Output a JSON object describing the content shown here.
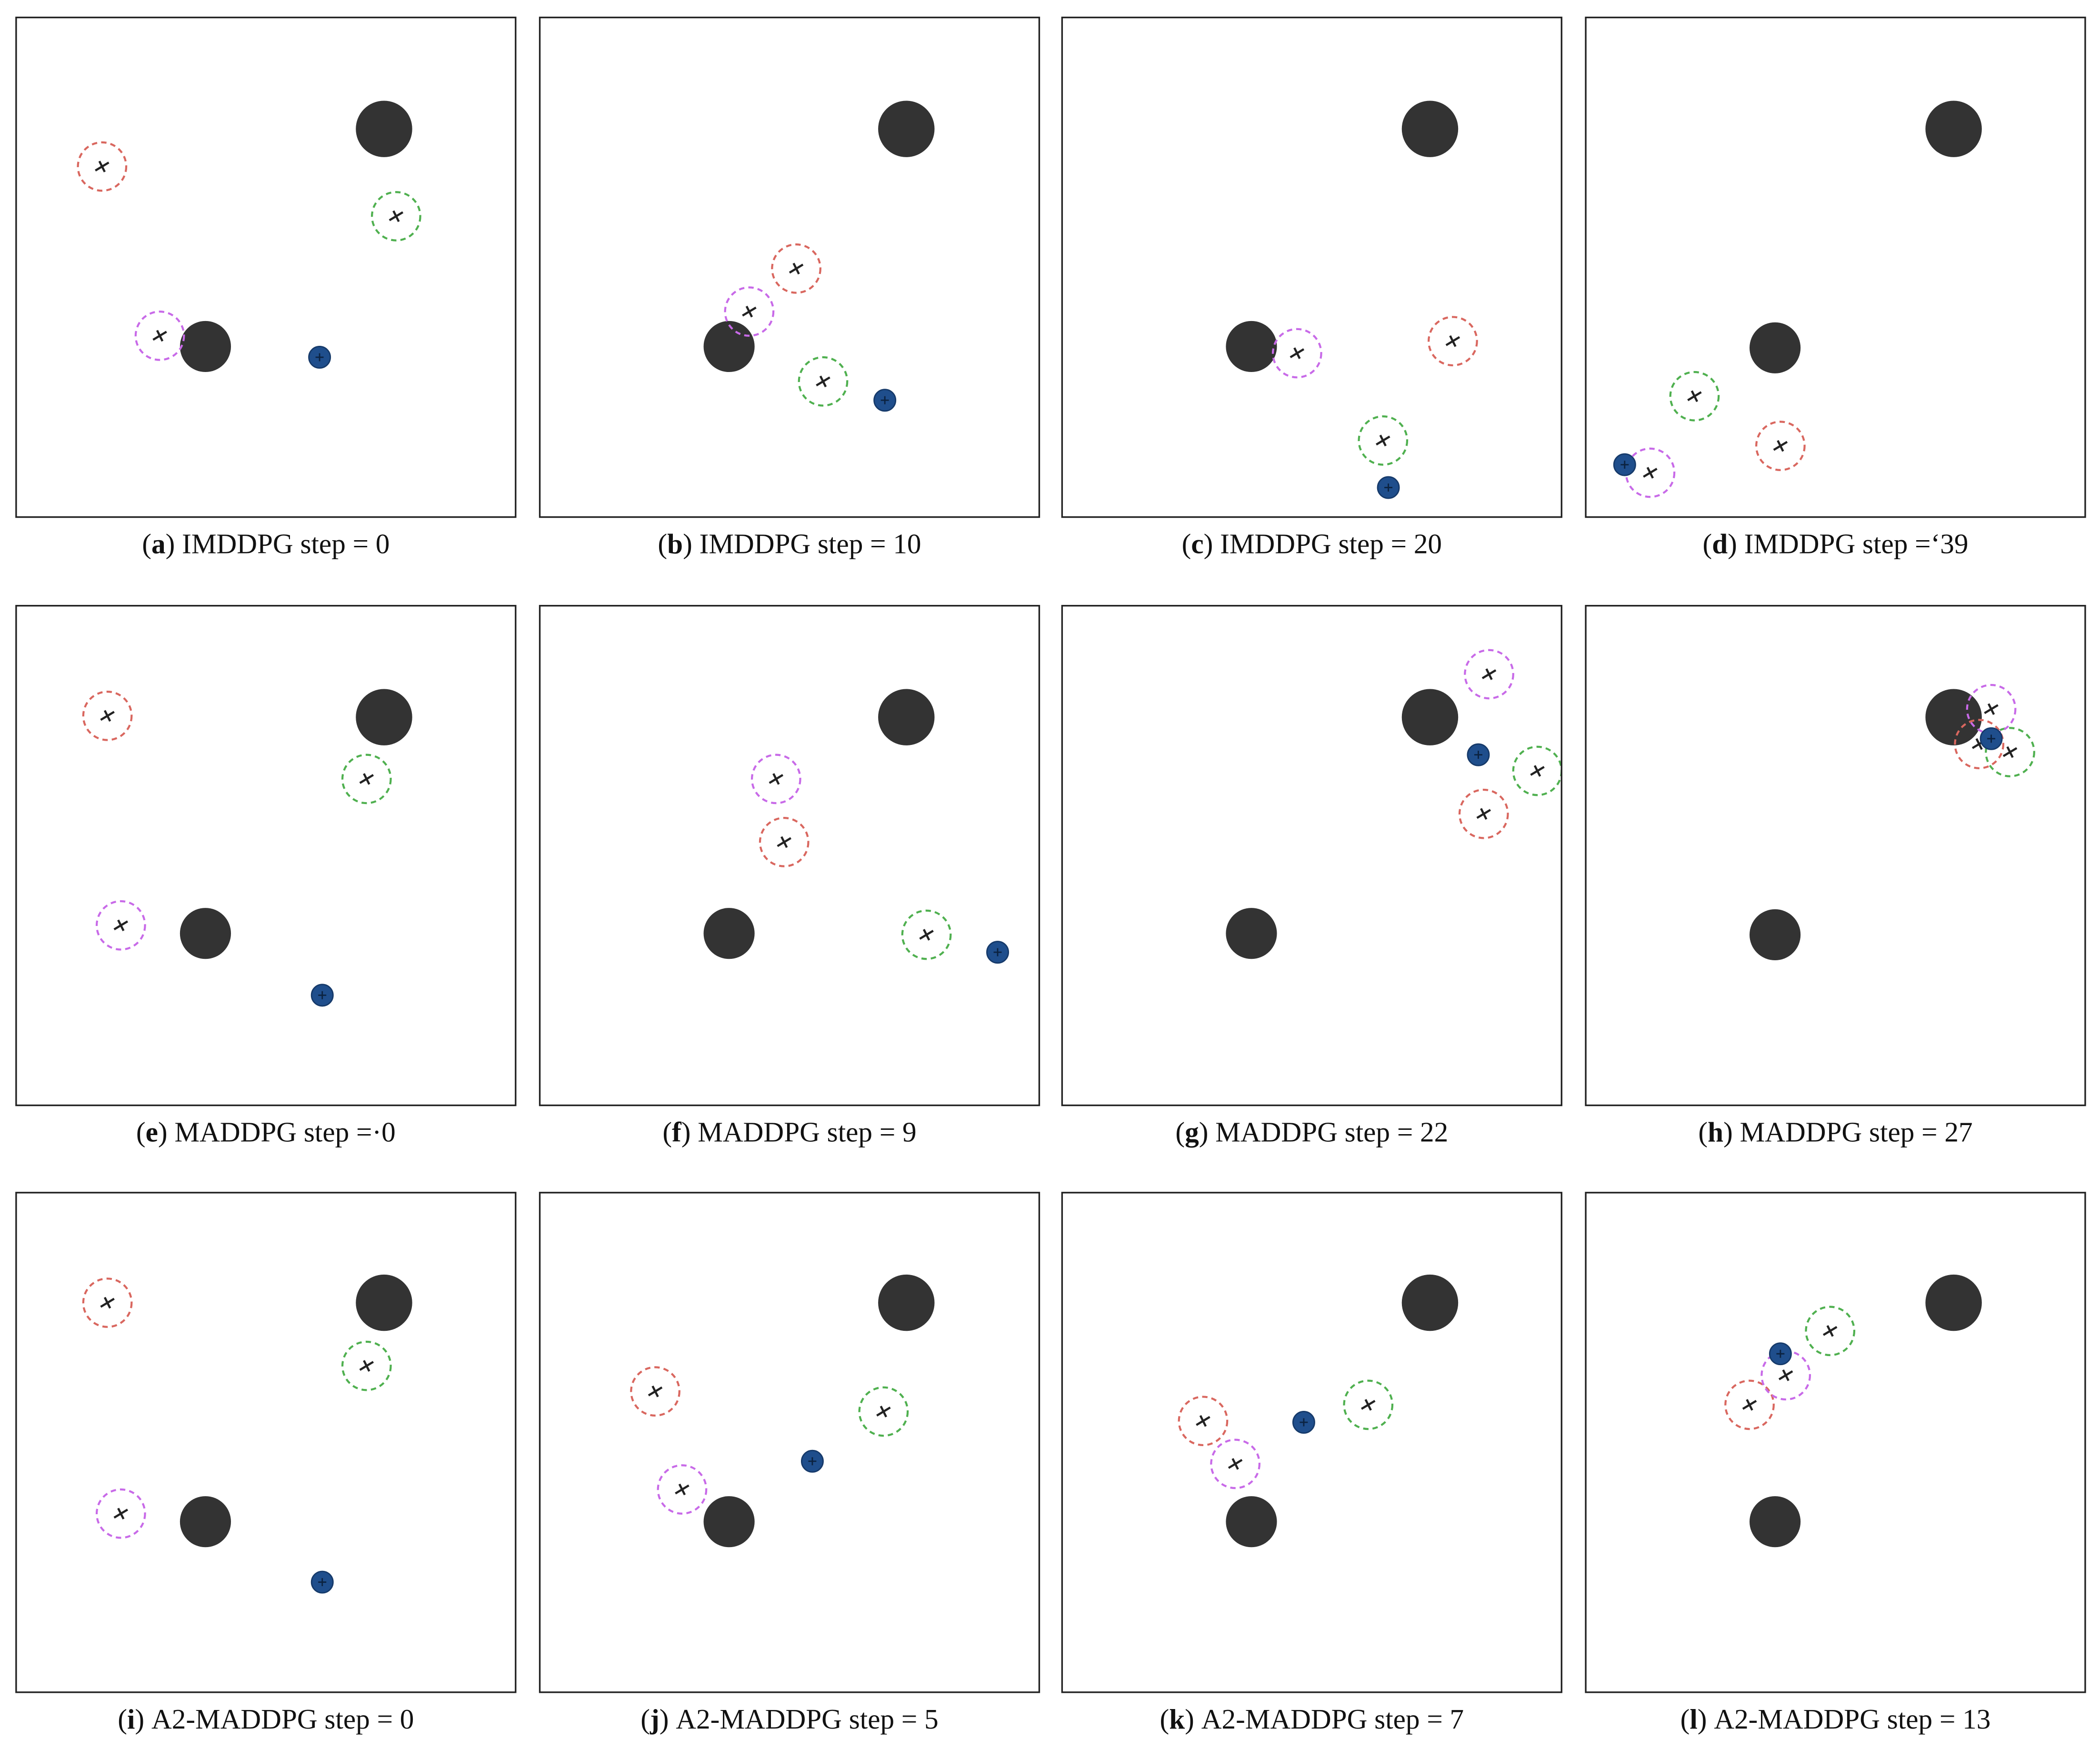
{
  "panels": [
    {
      "label": "a",
      "caption": "IMDDPG step = 0"
    },
    {
      "label": "b",
      "caption": "IMDDPG step = 10"
    },
    {
      "label": "c",
      "caption": "IMDDPG step = 20"
    },
    {
      "label": "d",
      "caption": "IMDDPG step =‘39"
    },
    {
      "label": "e",
      "caption": "MADDPG step =·0"
    },
    {
      "label": "f",
      "caption": "MADDPG step = 9"
    },
    {
      "label": "g",
      "caption": "MADDPG step = 22"
    },
    {
      "label": "h",
      "caption": "MADDPG step = 27"
    },
    {
      "label": "i",
      "caption": "A2-MADDPG step = 0"
    },
    {
      "label": "j",
      "caption": "A2-MADDPG step = 5"
    },
    {
      "label": "k",
      "caption": "A2-MADDPG step = 7"
    },
    {
      "label": "l",
      "caption": "A2-MADDPG step = 13"
    }
  ]
}
